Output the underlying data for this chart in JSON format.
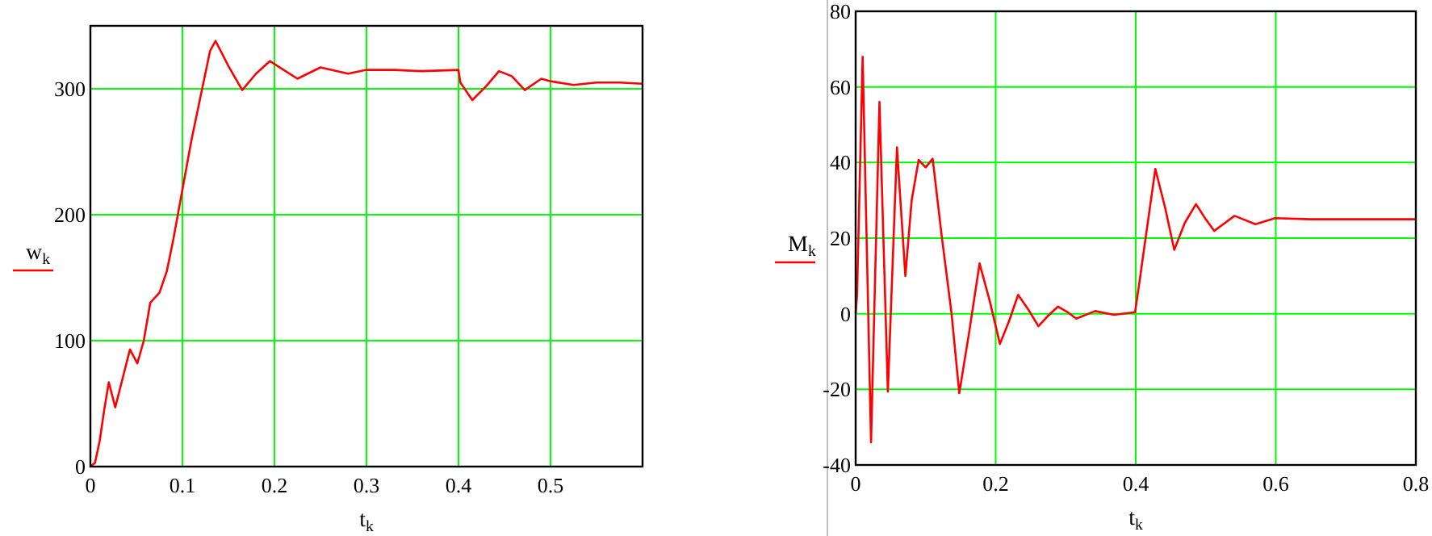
{
  "chart_data": [
    {
      "type": "line",
      "xlabel": "t$_{k}$",
      "ylabel": "w$_{k}$",
      "xlim": [
        0,
        0.6
      ],
      "ylim": [
        0,
        350
      ],
      "xticks": [
        0,
        0.1,
        0.2,
        0.3,
        0.4,
        0.5
      ],
      "yticks": [
        0,
        100,
        200,
        300
      ],
      "grid": true,
      "marker": "none",
      "line_style": "solid",
      "series": [
        {
          "color": "#ff0000",
          "x": [
            0,
            0.005,
            0.01,
            0.015,
            0.02,
            0.027,
            0.035,
            0.043,
            0.051,
            0.058,
            0.065,
            0.075,
            0.083,
            0.09,
            0.1,
            0.11,
            0.12,
            0.13,
            0.136,
            0.15,
            0.165,
            0.18,
            0.195,
            0.21,
            0.225,
            0.25,
            0.28,
            0.3,
            0.33,
            0.36,
            0.4,
            0.402,
            0.415,
            0.43,
            0.444,
            0.458,
            0.472,
            0.49,
            0.5,
            0.525,
            0.55,
            0.575,
            0.6
          ],
          "values": [
            0,
            3,
            20,
            45,
            67,
            47,
            70,
            93,
            82,
            100,
            130,
            138,
            155,
            180,
            220,
            260,
            295,
            330,
            338,
            318,
            299,
            312,
            322,
            315,
            308,
            317,
            312,
            315,
            315,
            314,
            315,
            305,
            291,
            302,
            314,
            310,
            299,
            308,
            306,
            303,
            305,
            305,
            304
          ]
        }
      ]
    },
    {
      "type": "line",
      "xlabel": "t$_{k}$",
      "ylabel": "M$_{k}$",
      "xlim": [
        0,
        0.8
      ],
      "ylim": [
        -40,
        80
      ],
      "xticks": [
        0,
        0.2,
        0.4,
        0.6,
        0.8
      ],
      "yticks": [
        -40,
        -20,
        0,
        20,
        40,
        60,
        80
      ],
      "grid": true,
      "marker": "none",
      "line_style": "solid",
      "series": [
        {
          "color": "#ff0000",
          "x": [
            0,
            0.002,
            0.01,
            0.022,
            0.034,
            0.046,
            0.059,
            0.071,
            0.08,
            0.09,
            0.1,
            0.11,
            0.123,
            0.137,
            0.148,
            0.162,
            0.177,
            0.192,
            0.206,
            0.219,
            0.232,
            0.247,
            0.261,
            0.275,
            0.289,
            0.302,
            0.315,
            0.342,
            0.369,
            0.399,
            0.405,
            0.411,
            0.428,
            0.442,
            0.455,
            0.47,
            0.486,
            0.5,
            0.512,
            0.541,
            0.571,
            0.599,
            0.65,
            0.7,
            0.75,
            0.8
          ],
          "values": [
            0,
            5,
            68,
            -34,
            56,
            -20.6,
            44,
            10,
            30,
            40.7,
            38.7,
            41,
            20.4,
            0,
            -21,
            -5,
            13.3,
            3,
            -8,
            -2,
            5,
            1,
            -3.3,
            -0.5,
            1.9,
            0.5,
            -1.3,
            0.7,
            -0.3,
            0.4,
            8,
            16,
            38.3,
            28,
            16.9,
            24,
            29,
            25,
            21.9,
            25.9,
            23.7,
            25.3,
            25,
            25,
            25,
            25
          ]
        }
      ]
    }
  ]
}
